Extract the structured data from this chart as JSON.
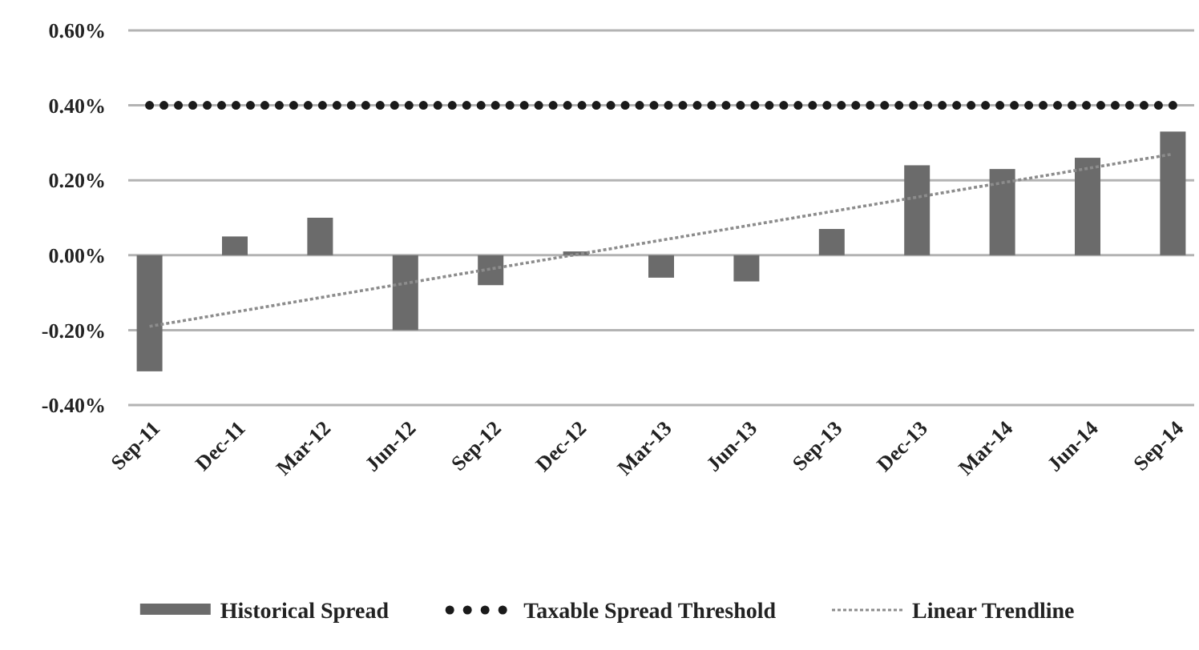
{
  "chart_data": {
    "type": "bar",
    "categories": [
      "Sep-11",
      "Dec-11",
      "Mar-12",
      "Jun-12",
      "Sep-12",
      "Dec-12",
      "Mar-13",
      "Jun-13",
      "Sep-13",
      "Dec-13",
      "Mar-14",
      "Jun-14",
      "Sep-14"
    ],
    "series": [
      {
        "name": "Historical Spread",
        "color": "#6b6b6b",
        "values": [
          -0.31,
          0.05,
          0.1,
          -0.2,
          -0.08,
          0.01,
          -0.06,
          -0.07,
          0.07,
          0.24,
          0.23,
          0.26,
          0.33
        ]
      },
      {
        "name": "Taxable Spread Threshold",
        "type": "line",
        "color": "#1a1a1a",
        "line_style": "dotted",
        "values": [
          0.4,
          0.4,
          0.4,
          0.4,
          0.4,
          0.4,
          0.4,
          0.4,
          0.4,
          0.4,
          0.4,
          0.4,
          0.4
        ]
      },
      {
        "name": "Linear Trendline",
        "type": "line",
        "color": "#8c8c8c",
        "line_style": "dashed",
        "x": [
          "Sep-11",
          "Sep-14"
        ],
        "values": [
          -0.19,
          0.27
        ]
      }
    ],
    "ylim": [
      -0.4,
      0.6
    ],
    "yticks": [
      {
        "value": -0.4,
        "label": "-0.40%"
      },
      {
        "value": -0.2,
        "label": "-0.20%"
      },
      {
        "value": 0,
        "label": "0.00%"
      },
      {
        "value": 0.2,
        "label": "0.20%"
      },
      {
        "value": 0.4,
        "label": "0.40%"
      },
      {
        "value": 0.6,
        "label": "0.60%"
      }
    ],
    "grid": "y",
    "legend": "bottom"
  }
}
